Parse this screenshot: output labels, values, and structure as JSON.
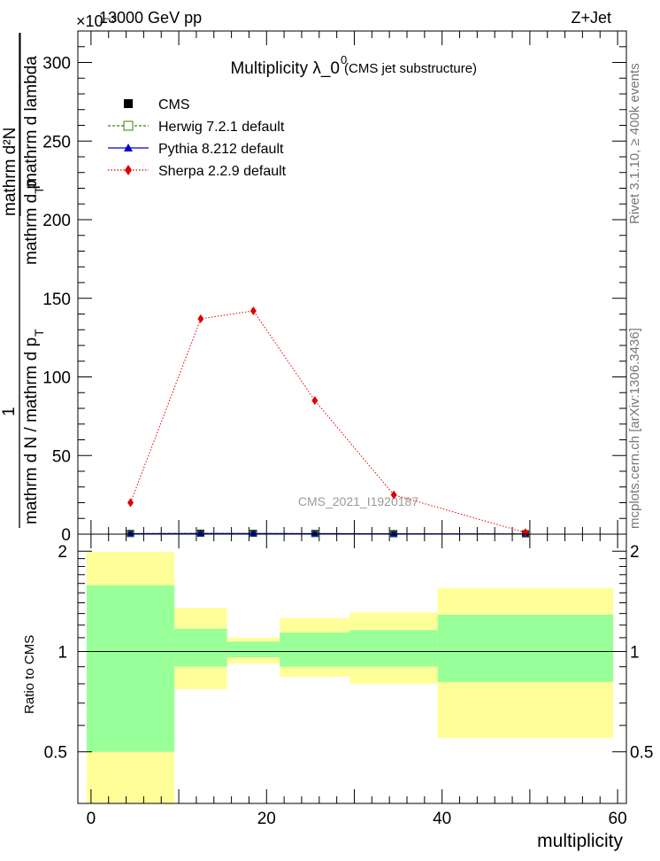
{
  "header": {
    "left": "13000 GeV pp",
    "right": "Z+Jet",
    "exponent": "×10⁻³"
  },
  "plot_title": {
    "main": "Multiplicity  λ_0",
    "superscript": "0",
    "sub": "(CMS jet substructure)"
  },
  "side_labels": {
    "rivet": "Rivet 3.1.10, ≥ 400k events",
    "mcplots": "mcplots.cern.ch [arXiv:1306.3436]"
  },
  "watermark": "CMS_2021_I1920187",
  "main_ylabel": {
    "num_a": "mathrm d²N",
    "num_b": "mathrm d p",
    "num_b_sub": "T",
    "num_c": " mathrm d lambda",
    "one": "1",
    "den_a": "mathrm d N / mathrm d p",
    "den_a_sub": "T"
  },
  "ratio_ylabel": "Ratio to CMS",
  "xlabel": "multiplicity",
  "legend": [
    {
      "label": "CMS",
      "color": "#000000",
      "marker": "square-filled"
    },
    {
      "label": "Herwig 7.2.1 default",
      "color": "#2e8b00",
      "marker": "square-open"
    },
    {
      "label": "Pythia 8.212 default",
      "color": "#0000cc",
      "marker": "triangle"
    },
    {
      "label": "Sherpa 2.2.9 default",
      "color": "#e00000",
      "marker": "diamond"
    }
  ],
  "chart_data": {
    "type": "line",
    "x_range": [
      -1.5,
      61
    ],
    "main": {
      "ylim": [
        0,
        320
      ],
      "yticks": [
        0,
        50,
        100,
        150,
        200,
        250,
        300
      ],
      "y_unit_scale": "×10⁻³",
      "cms": {
        "x": [
          4.5,
          12.5,
          18.5,
          25.5,
          34.5,
          49.5
        ],
        "y": [
          0.4,
          0.6,
          0.5,
          0.4,
          0.3,
          0.2
        ]
      },
      "herwig": {
        "x": [
          4.5,
          12.5,
          18.5,
          25.5,
          34.5,
          49.5
        ],
        "y": [
          0.3,
          0.5,
          0.4,
          0.3,
          0.2,
          0.1
        ]
      },
      "pythia": {
        "x": [
          4.5,
          12.5,
          18.5,
          25.5,
          34.5,
          49.5
        ],
        "y": [
          0.3,
          0.4,
          0.4,
          0.3,
          0.2,
          0.1
        ]
      },
      "sherpa": {
        "x": [
          4.5,
          12.5,
          18.5,
          25.5,
          34.5,
          49.5
        ],
        "y": [
          20,
          137,
          142,
          85,
          25,
          1
        ]
      }
    },
    "ratio": {
      "ylim": [
        0.35,
        2.25
      ],
      "yticks": [
        0.5,
        1,
        2
      ],
      "xticks": [
        0,
        20,
        40,
        60
      ],
      "bins": [
        {
          "lo": -0.5,
          "hi": 9.5,
          "yellow": [
            0.35,
            1.99
          ],
          "green": [
            0.5,
            1.58
          ]
        },
        {
          "lo": 9.5,
          "hi": 15.5,
          "yellow": [
            0.77,
            1.35
          ],
          "green": [
            0.9,
            1.17
          ]
        },
        {
          "lo": 15.5,
          "hi": 21.5,
          "yellow": [
            0.92,
            1.1
          ],
          "green": [
            0.96,
            1.07
          ]
        },
        {
          "lo": 21.5,
          "hi": 29.5,
          "yellow": [
            0.84,
            1.26
          ],
          "green": [
            0.9,
            1.14
          ]
        },
        {
          "lo": 29.5,
          "hi": 39.5,
          "yellow": [
            0.8,
            1.31
          ],
          "green": [
            0.9,
            1.16
          ]
        },
        {
          "lo": 39.5,
          "hi": 59.5,
          "yellow": [
            0.55,
            1.55
          ],
          "green": [
            0.81,
            1.29
          ]
        }
      ]
    },
    "colors": {
      "yellow": "#ffff99",
      "green": "#99ff99"
    }
  }
}
